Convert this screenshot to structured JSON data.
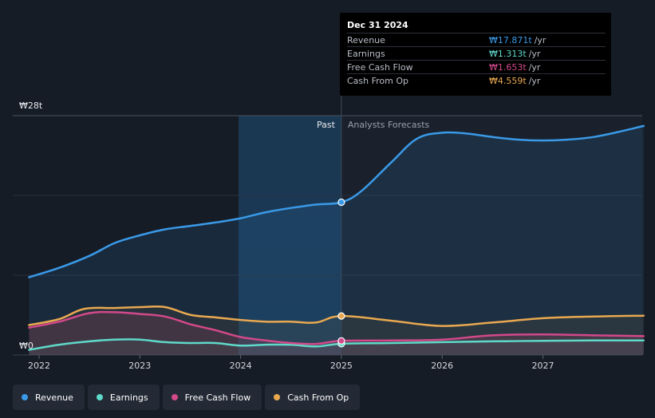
{
  "chart_data": {
    "type": "area",
    "y_axis": {
      "min": 0,
      "max": 28,
      "top_label": "₩28t",
      "bottom_label": "₩0",
      "unit": "trillion KRW"
    },
    "x_axis": {
      "ticks": [
        "2022",
        "2023",
        "2024",
        "2025",
        "2026",
        "2027"
      ],
      "range": [
        2021.9,
        2028.0
      ]
    },
    "past_label": "Past",
    "forecast_label": "Analysts Forecasts",
    "divider_year": 2025.0,
    "highlight_start": 2023.98,
    "series": [
      {
        "name": "Revenue",
        "color": "#3a9ae8",
        "points": [
          [
            2021.9,
            9.1
          ],
          [
            2022.2,
            10.2
          ],
          [
            2022.5,
            11.6
          ],
          [
            2022.75,
            13.1
          ],
          [
            2023.0,
            14.0
          ],
          [
            2023.25,
            14.7
          ],
          [
            2023.5,
            15.1
          ],
          [
            2023.75,
            15.5
          ],
          [
            2024.0,
            16.0
          ],
          [
            2024.25,
            16.7
          ],
          [
            2024.5,
            17.2
          ],
          [
            2024.75,
            17.6
          ],
          [
            2025.0,
            17.871
          ],
          [
            2025.2,
            19.2
          ],
          [
            2025.5,
            22.6
          ],
          [
            2025.75,
            25.3
          ],
          [
            2026.0,
            26.0
          ],
          [
            2026.25,
            25.9
          ],
          [
            2026.5,
            25.5
          ],
          [
            2026.75,
            25.2
          ],
          [
            2027.0,
            25.1
          ],
          [
            2027.25,
            25.2
          ],
          [
            2027.5,
            25.5
          ],
          [
            2027.75,
            26.1
          ],
          [
            2028.0,
            26.8
          ]
        ]
      },
      {
        "name": "Earnings",
        "color": "#5fd9c9",
        "points": [
          [
            2021.9,
            0.6
          ],
          [
            2022.2,
            1.2
          ],
          [
            2022.5,
            1.6
          ],
          [
            2022.75,
            1.8
          ],
          [
            2023.0,
            1.8
          ],
          [
            2023.25,
            1.5
          ],
          [
            2023.5,
            1.4
          ],
          [
            2023.75,
            1.4
          ],
          [
            2024.0,
            1.1
          ],
          [
            2024.25,
            1.2
          ],
          [
            2024.5,
            1.2
          ],
          [
            2024.75,
            1.0
          ],
          [
            2025.0,
            1.313
          ],
          [
            2025.5,
            1.4
          ],
          [
            2026.0,
            1.5
          ],
          [
            2026.5,
            1.6
          ],
          [
            2027.0,
            1.65
          ],
          [
            2027.5,
            1.7
          ],
          [
            2028.0,
            1.7
          ]
        ]
      },
      {
        "name": "Free Cash Flow",
        "color": "#d2498a",
        "points": [
          [
            2021.9,
            3.2
          ],
          [
            2022.2,
            3.9
          ],
          [
            2022.5,
            4.9
          ],
          [
            2022.75,
            5.0
          ],
          [
            2023.0,
            4.8
          ],
          [
            2023.25,
            4.5
          ],
          [
            2023.5,
            3.6
          ],
          [
            2023.75,
            2.9
          ],
          [
            2024.0,
            2.1
          ],
          [
            2024.25,
            1.7
          ],
          [
            2024.5,
            1.4
          ],
          [
            2024.75,
            1.3
          ],
          [
            2025.0,
            1.653
          ],
          [
            2025.5,
            1.7
          ],
          [
            2026.0,
            1.8
          ],
          [
            2026.5,
            2.3
          ],
          [
            2027.0,
            2.4
          ],
          [
            2027.5,
            2.3
          ],
          [
            2028.0,
            2.2
          ]
        ]
      },
      {
        "name": "Cash From Op",
        "color": "#e8a850",
        "points": [
          [
            2021.9,
            3.5
          ],
          [
            2022.2,
            4.2
          ],
          [
            2022.45,
            5.4
          ],
          [
            2022.75,
            5.5
          ],
          [
            2023.0,
            5.6
          ],
          [
            2023.25,
            5.6
          ],
          [
            2023.5,
            4.7
          ],
          [
            2023.75,
            4.4
          ],
          [
            2024.0,
            4.1
          ],
          [
            2024.25,
            3.9
          ],
          [
            2024.5,
            3.9
          ],
          [
            2024.75,
            3.8
          ],
          [
            2025.0,
            4.559
          ],
          [
            2025.5,
            4.0
          ],
          [
            2026.0,
            3.4
          ],
          [
            2026.5,
            3.8
          ],
          [
            2027.0,
            4.3
          ],
          [
            2027.5,
            4.5
          ],
          [
            2028.0,
            4.6
          ]
        ]
      }
    ],
    "tooltip": {
      "date": "Dec 31 2024",
      "rows": [
        {
          "label": "Revenue",
          "value": "₩17.871t",
          "unit": "/yr",
          "color": "#3a9ae8"
        },
        {
          "label": "Earnings",
          "value": "₩1.313t",
          "unit": "/yr",
          "color": "#5fd9c9"
        },
        {
          "label": "Free Cash Flow",
          "value": "₩1.653t",
          "unit": "/yr",
          "color": "#d2498a"
        },
        {
          "label": "Cash From Op",
          "value": "₩4.559t",
          "unit": "/yr",
          "color": "#e8a850"
        }
      ]
    }
  },
  "legend": [
    {
      "label": "Revenue",
      "color": "#3a9ae8"
    },
    {
      "label": "Earnings",
      "color": "#5fd9c9"
    },
    {
      "label": "Free Cash Flow",
      "color": "#d2498a"
    },
    {
      "label": "Cash From Op",
      "color": "#e8a850"
    }
  ]
}
